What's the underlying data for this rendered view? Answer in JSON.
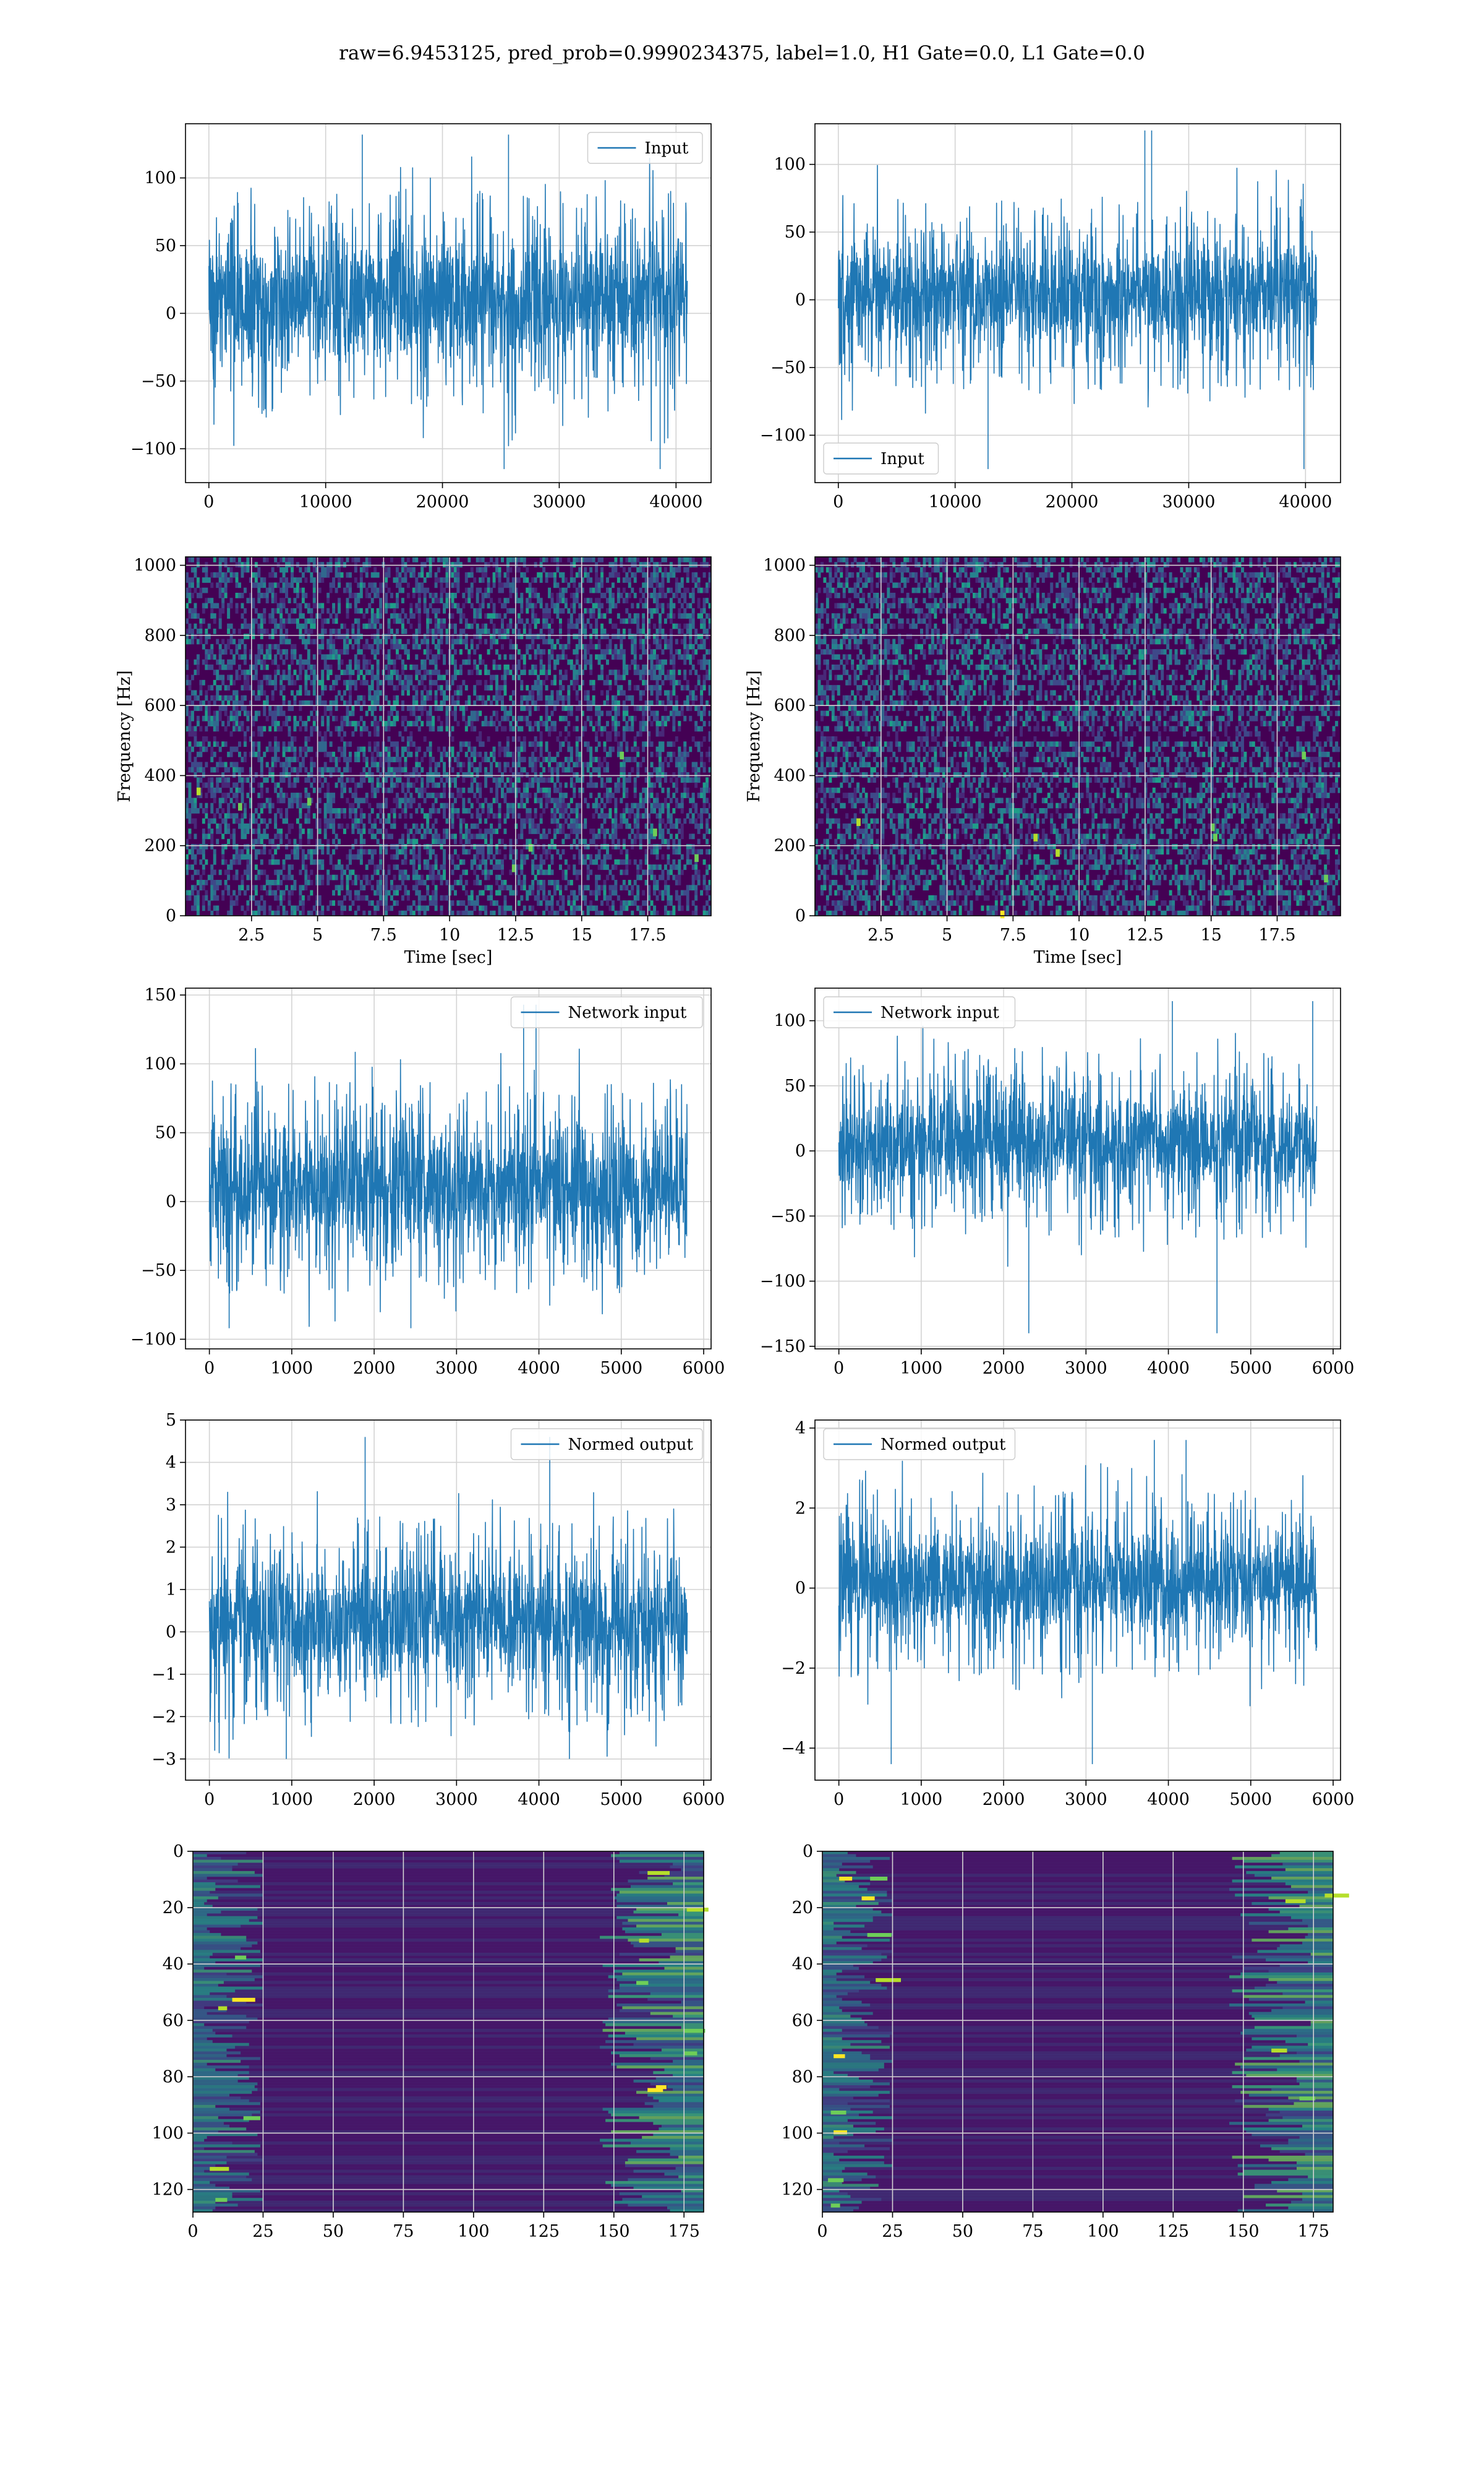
{
  "figure": {
    "title": "raw=6.9453125, pred_prob=0.9990234375, label=1.0, H1 Gate=0.0, L1 Gate=0.0"
  },
  "colors": {
    "series": "#1f77b4",
    "grid": "#d3d3d3",
    "axes": "#000000",
    "viridis": [
      "#440154",
      "#482878",
      "#3e4989",
      "#31688e",
      "#26828e",
      "#1f9e89",
      "#35b779",
      "#6ece58",
      "#b5de2b",
      "#fde725"
    ]
  },
  "chart_data": [
    {
      "id": "h1-input",
      "type": "line",
      "series": [
        {
          "name": "Input",
          "x_range": [
            0,
            40960
          ],
          "amplitude_range": [
            -115,
            132
          ],
          "typical_envelope": [
            -65,
            85
          ]
        }
      ],
      "xlim": [
        -2000,
        43000
      ],
      "ylim": [
        -125,
        140
      ],
      "xticks": [
        0,
        10000,
        20000,
        30000,
        40000
      ],
      "yticks": [
        -100,
        -50,
        0,
        50,
        100
      ],
      "xlabel": "",
      "ylabel": "",
      "grid": true,
      "legend": "top-right"
    },
    {
      "id": "l1-input",
      "type": "line",
      "series": [
        {
          "name": "Input",
          "x_range": [
            0,
            40960
          ],
          "amplitude_range": [
            -125,
            125
          ],
          "typical_envelope": [
            -60,
            70
          ]
        }
      ],
      "xlim": [
        -2000,
        43000
      ],
      "ylim": [
        -135,
        130
      ],
      "xticks": [
        0,
        10000,
        20000,
        30000,
        40000
      ],
      "yticks": [
        -100,
        -50,
        0,
        50,
        100
      ],
      "xlabel": "",
      "ylabel": "",
      "grid": true,
      "legend": "bottom-left"
    },
    {
      "id": "h1-spectrogram",
      "type": "heatmap",
      "xlim": [
        0,
        19.9
      ],
      "ylim": [
        0,
        1024
      ],
      "xticks": [
        2.5,
        5.0,
        7.5,
        10.0,
        12.5,
        15.0,
        17.5
      ],
      "yticks": [
        0,
        200,
        400,
        600,
        800,
        1000
      ],
      "xlabel": "Time [sec]",
      "ylabel": "Frequency [Hz]",
      "colormap": "viridis",
      "grid": true
    },
    {
      "id": "l1-spectrogram",
      "type": "heatmap",
      "xlim": [
        0,
        19.9
      ],
      "ylim": [
        0,
        1024
      ],
      "xticks": [
        2.5,
        5.0,
        7.5,
        10.0,
        12.5,
        15.0,
        17.5
      ],
      "yticks": [
        0,
        200,
        400,
        600,
        800,
        1000
      ],
      "xlabel": "Time [sec]",
      "ylabel": "Frequency [Hz]",
      "colormap": "viridis",
      "grid": true
    },
    {
      "id": "h1-network-input",
      "type": "line",
      "series": [
        {
          "name": "Network input",
          "x_range": [
            0,
            5800
          ],
          "amplitude_range": [
            -92,
            143
          ],
          "typical_envelope": [
            -60,
            80
          ]
        }
      ],
      "xlim": [
        -290,
        6090
      ],
      "ylim": [
        -107,
        155
      ],
      "xticks": [
        0,
        1000,
        2000,
        3000,
        4000,
        5000,
        6000
      ],
      "yticks": [
        -100,
        -50,
        0,
        50,
        100,
        150
      ],
      "xlabel": "",
      "ylabel": "",
      "grid": true,
      "legend": "top-right"
    },
    {
      "id": "l1-network-input",
      "type": "line",
      "series": [
        {
          "name": "Network input",
          "x_range": [
            0,
            5800
          ],
          "amplitude_range": [
            -140,
            115
          ],
          "typical_envelope": [
            -60,
            70
          ]
        }
      ],
      "xlim": [
        -290,
        6090
      ],
      "ylim": [
        -152,
        125
      ],
      "xticks": [
        0,
        1000,
        2000,
        3000,
        4000,
        5000,
        6000
      ],
      "yticks": [
        -150,
        -100,
        -50,
        0,
        50,
        100
      ],
      "xlabel": "",
      "ylabel": "",
      "grid": true,
      "legend": "top-left"
    },
    {
      "id": "h1-normed-output",
      "type": "line",
      "series": [
        {
          "name": "Normed output",
          "x_range": [
            0,
            5800
          ],
          "amplitude_range": [
            -3.0,
            4.6
          ],
          "typical_envelope": [
            -2.0,
            2.5
          ]
        }
      ],
      "xlim": [
        -290,
        6090
      ],
      "ylim": [
        -3.5,
        5.0
      ],
      "xticks": [
        0,
        1000,
        2000,
        3000,
        4000,
        5000,
        6000
      ],
      "yticks": [
        -3,
        -2,
        -1,
        0,
        1,
        2,
        3,
        4,
        5
      ],
      "xlabel": "",
      "ylabel": "",
      "grid": true,
      "legend": "top-right"
    },
    {
      "id": "l1-normed-output",
      "type": "line",
      "series": [
        {
          "name": "Normed output",
          "x_range": [
            0,
            5800
          ],
          "amplitude_range": [
            -4.4,
            3.7
          ],
          "typical_envelope": [
            -2.0,
            2.3
          ]
        }
      ],
      "xlim": [
        -290,
        6090
      ],
      "ylim": [
        -4.8,
        4.2
      ],
      "xticks": [
        0,
        1000,
        2000,
        3000,
        4000,
        5000,
        6000
      ],
      "yticks": [
        -4,
        -2,
        0,
        2,
        4
      ],
      "xlabel": "",
      "ylabel": "",
      "grid": true,
      "legend": "top-left"
    },
    {
      "id": "h1-feature-map",
      "type": "heatmap",
      "xlim": [
        0,
        182
      ],
      "ylim": [
        128,
        0
      ],
      "xticks": [
        0,
        25,
        50,
        75,
        100,
        125,
        150,
        175
      ],
      "yticks": [
        0,
        20,
        40,
        60,
        80,
        100,
        120
      ],
      "xlabel": "",
      "ylabel": "",
      "colormap": "viridis",
      "grid": true
    },
    {
      "id": "l1-feature-map",
      "type": "heatmap",
      "xlim": [
        0,
        182
      ],
      "ylim": [
        128,
        0
      ],
      "xticks": [
        0,
        25,
        50,
        75,
        100,
        125,
        150,
        175
      ],
      "yticks": [
        0,
        20,
        40,
        60,
        80,
        100,
        120
      ],
      "xlabel": "",
      "ylabel": "",
      "colormap": "viridis",
      "grid": true
    }
  ]
}
